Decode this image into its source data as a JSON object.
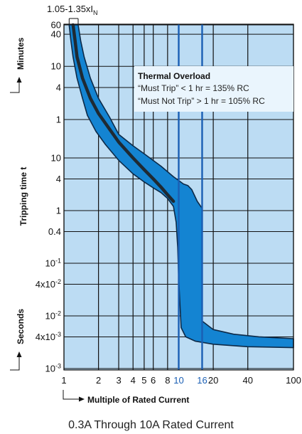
{
  "chart_data": {
    "type": "area",
    "title": "",
    "top_label_main": "1.05-1.35xI",
    "top_label_sub": "N",
    "ylabel": "Tripping time t",
    "ylabel_minutes": "Minutes",
    "ylabel_seconds": "Seconds",
    "xlabel": "Multiple of Rated Current",
    "x_scale": "log",
    "xlim": [
      1,
      100
    ],
    "x_ticks": [
      {
        "value": 1,
        "label": "1",
        "highlight": false
      },
      {
        "value": 2,
        "label": "2",
        "highlight": false
      },
      {
        "value": 3,
        "label": "3",
        "highlight": false
      },
      {
        "value": 4,
        "label": "4",
        "highlight": false
      },
      {
        "value": 5,
        "label": "5",
        "highlight": false
      },
      {
        "value": 6,
        "label": "6",
        "highlight": false
      },
      {
        "value": 8,
        "label": "8",
        "highlight": false
      },
      {
        "value": 10,
        "label": "10",
        "highlight": true
      },
      {
        "value": 16,
        "label": "16",
        "highlight": true
      },
      {
        "value": 20,
        "label": "20",
        "highlight": false
      },
      {
        "value": 40,
        "label": "40",
        "highlight": false
      },
      {
        "value": 100,
        "label": "100",
        "highlight": false
      }
    ],
    "y_minutes_ticks": [
      {
        "value": 60,
        "label": "60"
      },
      {
        "value": 40,
        "label": "40"
      },
      {
        "value": 10,
        "label": "10"
      },
      {
        "value": 4,
        "label": "4"
      },
      {
        "value": 1,
        "label": "1"
      }
    ],
    "y_seconds_ticks": [
      {
        "value": 10,
        "label": "10"
      },
      {
        "value": 4,
        "label": "4"
      },
      {
        "value": 1,
        "label": "1"
      },
      {
        "value": 0.4,
        "label": "0.4"
      },
      {
        "value": 0.1,
        "label": "10",
        "sup": "-1"
      },
      {
        "value": 0.04,
        "label": "4x10",
        "sup": "-2"
      },
      {
        "value": 0.01,
        "label": "10",
        "sup": "-2"
      },
      {
        "value": 0.004,
        "label": "4x10",
        "sup": "-3"
      },
      {
        "value": 0.001,
        "label": "10",
        "sup": "-3"
      }
    ],
    "band_upper": [
      {
        "x": 1.33,
        "t_min": 60
      },
      {
        "x": 1.4,
        "t_min": 30
      },
      {
        "x": 1.5,
        "t_min": 15
      },
      {
        "x": 1.7,
        "t_min": 6
      },
      {
        "x": 2.0,
        "t_min": 2.5
      },
      {
        "x": 2.5,
        "t_min": 1.1
      },
      {
        "x": 3.0,
        "t_sec": 28
      },
      {
        "x": 4.0,
        "t_sec": 17
      },
      {
        "x": 5.0,
        "t_sec": 12
      },
      {
        "x": 7.0,
        "t_sec": 7
      },
      {
        "x": 9.0,
        "t_sec": 4.4
      },
      {
        "x": 11.0,
        "t_sec": 3.2
      },
      {
        "x": 12.0,
        "t_sec": 3.0
      },
      {
        "x": 13.0,
        "t_sec": 2.5
      },
      {
        "x": 14.5,
        "t_sec": 1.5
      },
      {
        "x": 16.0,
        "t_sec": 1.1
      },
      {
        "x": 16.0,
        "t_sec": 0.008
      },
      {
        "x": 20.0,
        "t_sec": 0.0055
      },
      {
        "x": 30.0,
        "t_sec": 0.0045
      },
      {
        "x": 50.0,
        "t_sec": 0.004
      },
      {
        "x": 100.0,
        "t_sec": 0.0037
      }
    ],
    "band_lower": [
      {
        "x": 1.11,
        "t_min": 60
      },
      {
        "x": 1.15,
        "t_min": 30
      },
      {
        "x": 1.2,
        "t_min": 15
      },
      {
        "x": 1.3,
        "t_min": 6
      },
      {
        "x": 1.45,
        "t_min": 2.5
      },
      {
        "x": 1.6,
        "t_min": 1.2
      },
      {
        "x": 1.9,
        "t_sec": 32
      },
      {
        "x": 2.3,
        "t_sec": 18
      },
      {
        "x": 3.0,
        "t_sec": 9
      },
      {
        "x": 4.0,
        "t_sec": 5
      },
      {
        "x": 5.0,
        "t_sec": 3.5
      },
      {
        "x": 6.0,
        "t_sec": 2.7
      },
      {
        "x": 7.0,
        "t_sec": 2.2
      },
      {
        "x": 8.0,
        "t_sec": 1.7
      },
      {
        "x": 9.0,
        "t_sec": 1.2
      },
      {
        "x": 9.5,
        "t_sec": 0.6
      },
      {
        "x": 9.8,
        "t_sec": 0.2
      },
      {
        "x": 10.0,
        "t_sec": 0.05
      },
      {
        "x": 10.5,
        "t_sec": 0.006
      },
      {
        "x": 11.5,
        "t_sec": 0.004
      },
      {
        "x": 14.0,
        "t_sec": 0.0033
      },
      {
        "x": 20.0,
        "t_sec": 0.0029
      },
      {
        "x": 40.0,
        "t_sec": 0.0026
      },
      {
        "x": 100.0,
        "t_sec": 0.0025
      }
    ],
    "center_curve": [
      {
        "x": 1.2,
        "t_min": 60
      },
      {
        "x": 1.25,
        "t_min": 30
      },
      {
        "x": 1.3,
        "t_min": 15
      },
      {
        "x": 1.45,
        "t_min": 6
      },
      {
        "x": 1.7,
        "t_min": 2.5
      },
      {
        "x": 2.0,
        "t_min": 1.3
      },
      {
        "x": 2.5,
        "t_sec": 35
      },
      {
        "x": 3.0,
        "t_sec": 20
      },
      {
        "x": 4.0,
        "t_sec": 10
      },
      {
        "x": 5.0,
        "t_sec": 6
      },
      {
        "x": 6.0,
        "t_sec": 4
      },
      {
        "x": 7.0,
        "t_sec": 2.8
      },
      {
        "x": 8.0,
        "t_sec": 2.0
      },
      {
        "x": 9.0,
        "t_sec": 1.5
      }
    ],
    "annotation": {
      "title": "Thermal Overload",
      "line1": "“Must Trip” < 1 hr = 135% RC",
      "line2": "“Must Not Trip” > 1 hr = 105% RC"
    },
    "caption": "0.3A Through 10A Rated Current",
    "colors": {
      "plot_background": "#bcdcf3",
      "band_fill": "#1484d2",
      "band_edge": "#0d2a48",
      "grid": "#111111",
      "highlight_lines": "#1a5fb4",
      "center_curve": "#1f2a33",
      "annotation_box": "#eaf5fd"
    }
  }
}
